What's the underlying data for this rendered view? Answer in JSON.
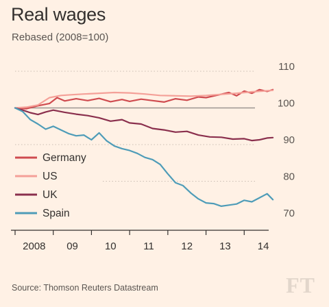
{
  "title": "Real wages",
  "subtitle": "Rebased (2008=100)",
  "source": "Source: Thomson Reuters Datastream",
  "logo": "FT",
  "chart_data": {
    "type": "line",
    "title": "Real wages",
    "subtitle": "Rebased (2008=100)",
    "xlabel": "",
    "ylabel": "",
    "xlim": [
      2008.0,
      2015.0
    ],
    "ylim": [
      70,
      110
    ],
    "yticks": [
      70,
      80,
      90,
      100,
      110
    ],
    "xticks": [
      {
        "label": "2008",
        "x": 2008.5
      },
      {
        "label": "09",
        "x": 2009.5
      },
      {
        "label": "10",
        "x": 2010.5
      },
      {
        "label": "11",
        "x": 2011.5
      },
      {
        "label": "12",
        "x": 2012.5
      },
      {
        "label": "13",
        "x": 2013.5
      },
      {
        "label": "14",
        "x": 2014.5
      }
    ],
    "grid": "horizontal-dotted",
    "legend_position": "left-middle",
    "series": [
      {
        "name": "Germany",
        "color": "#cf4b4f",
        "x": [
          2008.0,
          2008.3,
          2008.6,
          2008.9,
          2009.1,
          2009.3,
          2009.6,
          2009.9,
          2010.2,
          2010.5,
          2010.8,
          2011.0,
          2011.3,
          2011.6,
          2011.9,
          2012.2,
          2012.5,
          2012.8,
          2013.0,
          2013.3,
          2013.6,
          2013.8,
          2014.0,
          2014.2,
          2014.4,
          2014.6,
          2014.75
        ],
        "y": [
          100,
          99.8,
          100.6,
          101.2,
          102.8,
          101.9,
          102.5,
          102.0,
          102.6,
          101.7,
          102.3,
          101.8,
          102.4,
          102.0,
          101.6,
          102.5,
          102.1,
          103.0,
          102.8,
          103.5,
          104.2,
          103.3,
          104.6,
          104.0,
          105.0,
          104.5,
          105.0
        ]
      },
      {
        "name": "US",
        "color": "#f4a098",
        "x": [
          2008.0,
          2008.3,
          2008.6,
          2008.9,
          2009.2,
          2009.5,
          2009.8,
          2010.2,
          2010.6,
          2011.0,
          2011.4,
          2011.8,
          2012.2,
          2012.6,
          2013.0,
          2013.4,
          2013.8,
          2014.2,
          2014.5,
          2014.75
        ],
        "y": [
          100,
          100.2,
          100.8,
          102.8,
          103.4,
          103.6,
          103.8,
          104.0,
          104.2,
          104.1,
          103.8,
          103.4,
          103.3,
          103.2,
          103.4,
          103.7,
          104.0,
          104.4,
          104.6,
          104.8
        ]
      },
      {
        "name": "UK",
        "color": "#8a2f4d",
        "x": [
          2008.0,
          2008.2,
          2008.4,
          2008.6,
          2008.8,
          2009.0,
          2009.3,
          2009.6,
          2009.9,
          2010.2,
          2010.5,
          2010.8,
          2011.0,
          2011.3,
          2011.6,
          2011.9,
          2012.2,
          2012.5,
          2012.8,
          2013.1,
          2013.4,
          2013.7,
          2014.0,
          2014.2,
          2014.4,
          2014.6,
          2014.75
        ],
        "y": [
          100,
          99.4,
          98.7,
          98.2,
          98.9,
          99.4,
          98.8,
          98.3,
          97.9,
          97.3,
          96.4,
          96.8,
          95.9,
          95.6,
          94.4,
          94.0,
          93.4,
          93.6,
          92.6,
          92.1,
          92.0,
          91.5,
          91.6,
          91.1,
          91.3,
          91.8,
          91.9
        ]
      },
      {
        "name": "Spain",
        "color": "#4e9cb8",
        "x": [
          2008.0,
          2008.2,
          2008.4,
          2008.6,
          2008.8,
          2009.0,
          2009.2,
          2009.4,
          2009.6,
          2009.8,
          2010.0,
          2010.2,
          2010.4,
          2010.6,
          2010.8,
          2011.0,
          2011.2,
          2011.4,
          2011.6,
          2011.8,
          2012.0,
          2012.2,
          2012.4,
          2012.6,
          2012.8,
          2013.0,
          2013.2,
          2013.4,
          2013.6,
          2013.8,
          2014.0,
          2014.2,
          2014.4,
          2014.6,
          2014.75
        ],
        "y": [
          100,
          99.0,
          96.8,
          95.6,
          94.2,
          95.0,
          94.0,
          93.0,
          92.4,
          92.6,
          91.3,
          93.2,
          91.0,
          89.6,
          88.9,
          88.4,
          87.6,
          86.5,
          85.9,
          84.6,
          82.0,
          79.6,
          78.8,
          76.8,
          75.2,
          74.1,
          73.9,
          73.2,
          73.5,
          73.8,
          74.8,
          74.4,
          75.5,
          76.6,
          75.0
        ]
      }
    ]
  }
}
